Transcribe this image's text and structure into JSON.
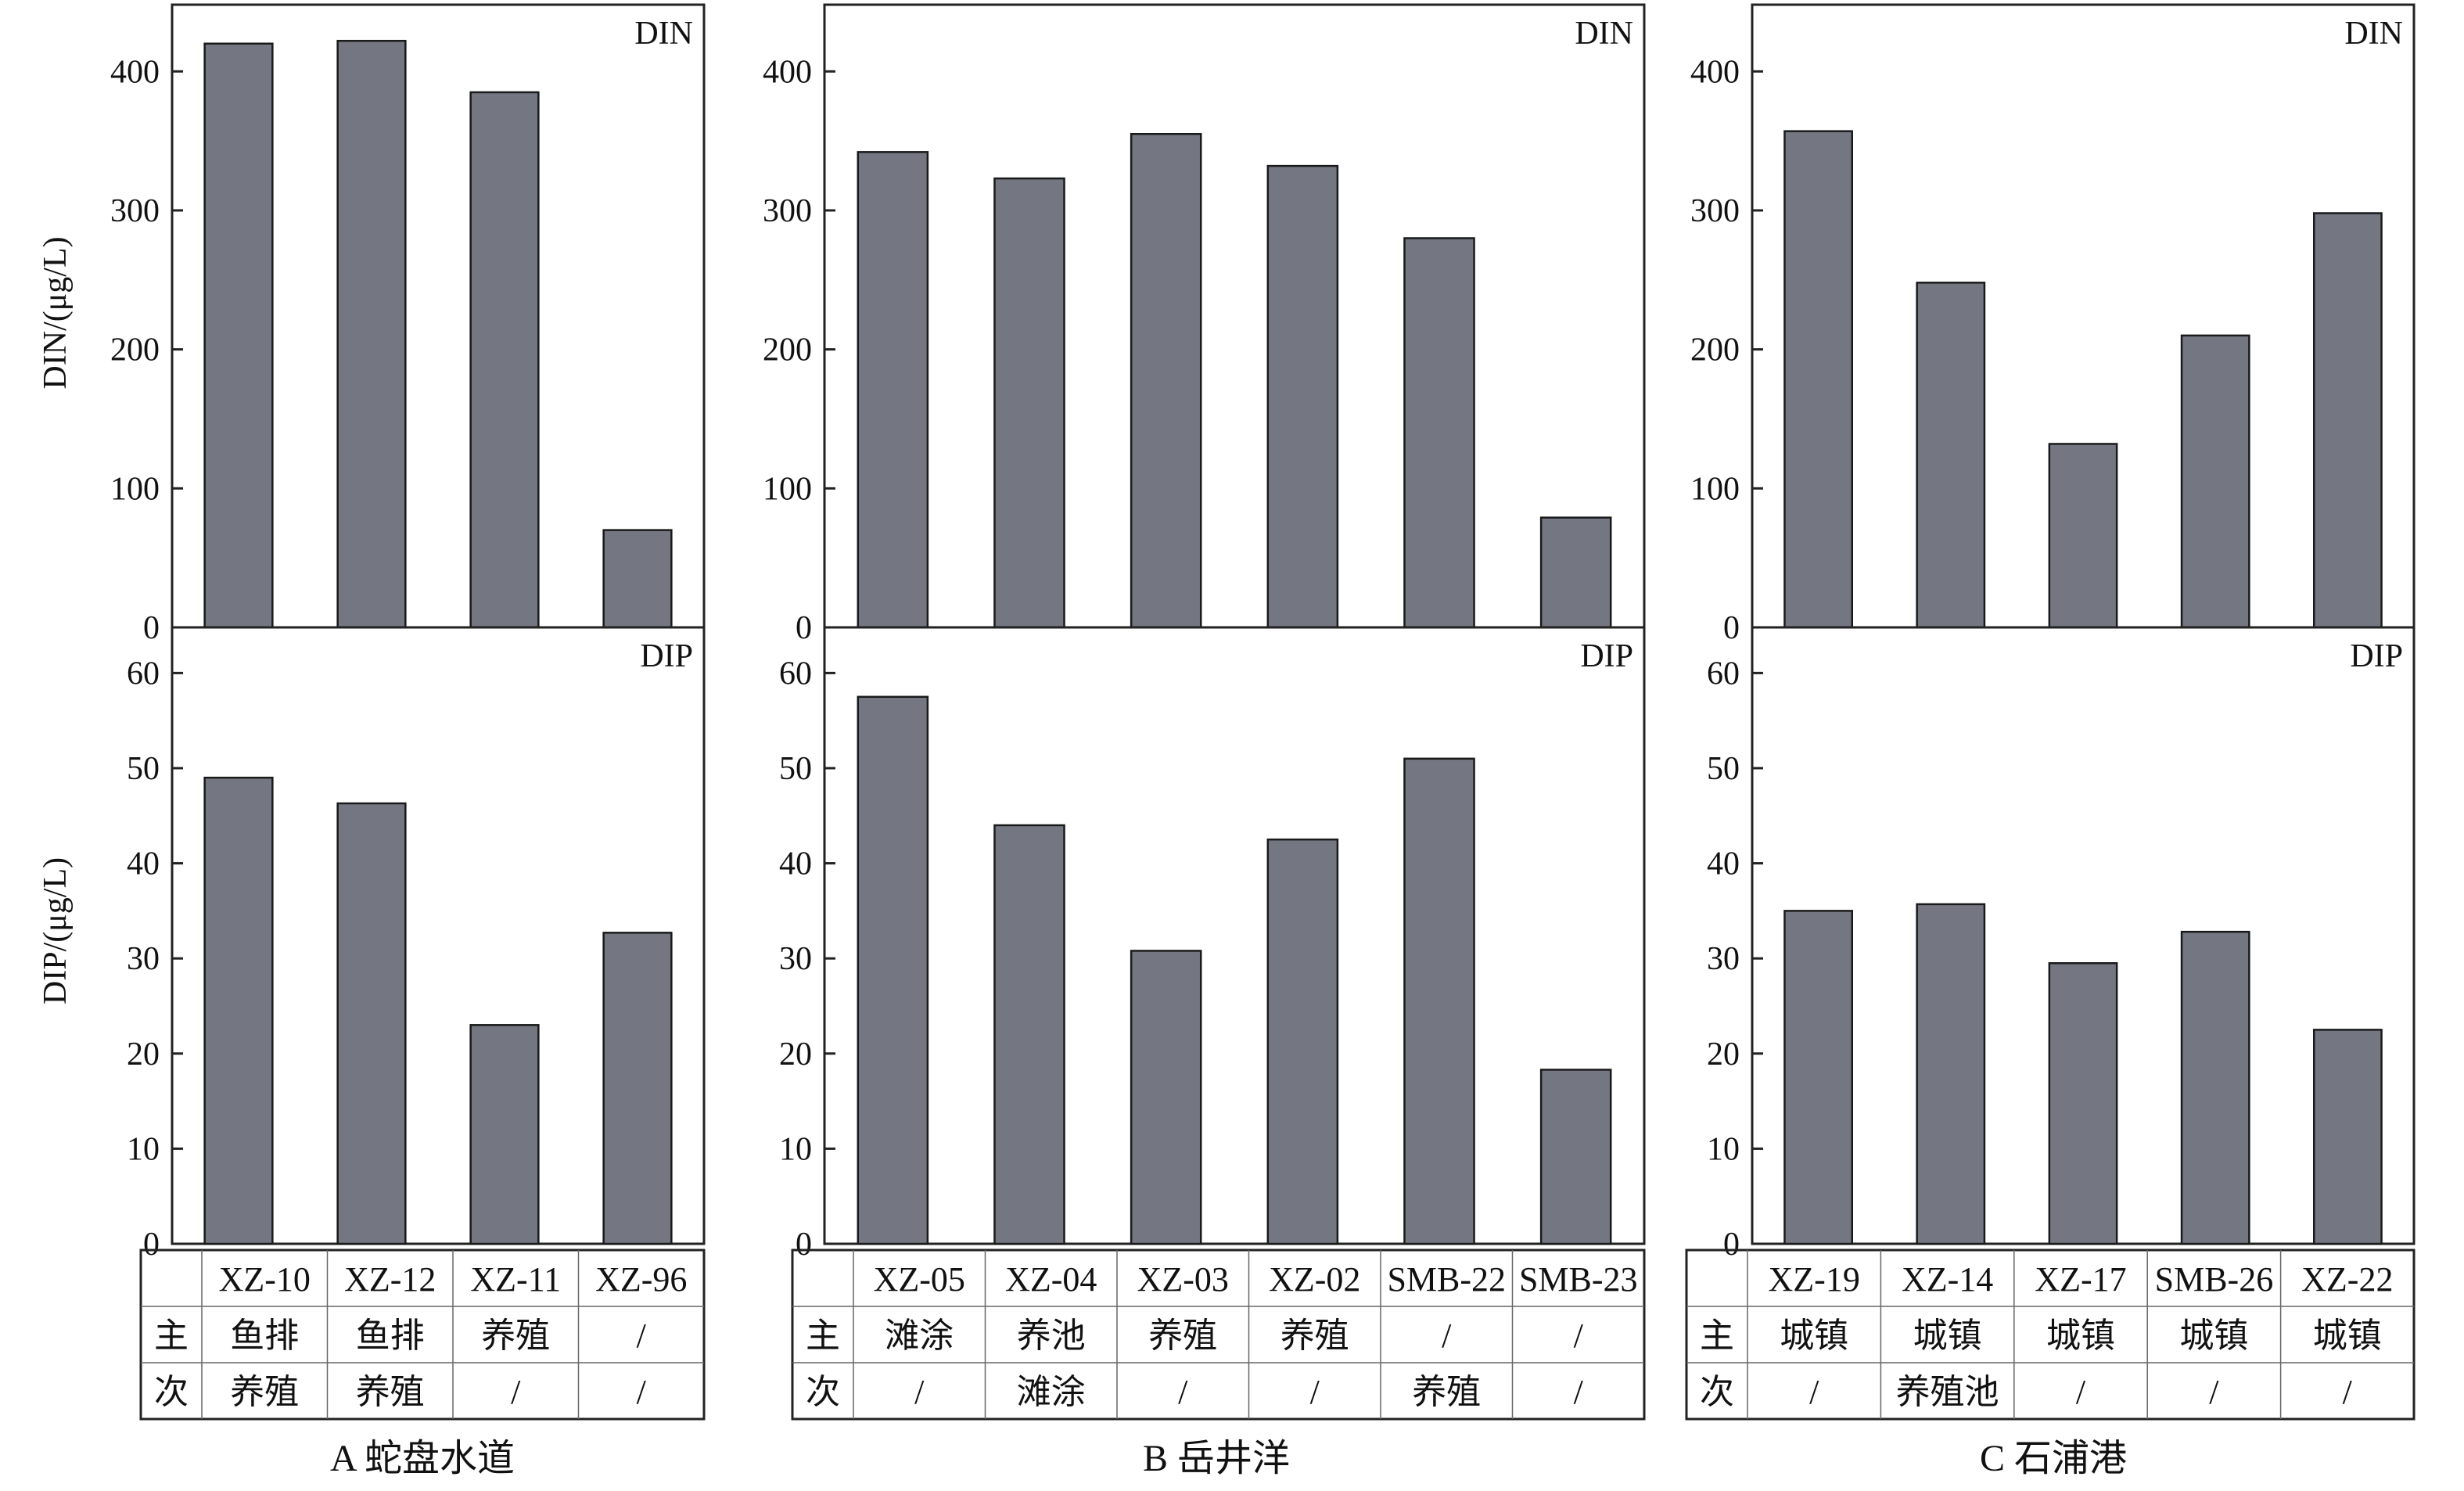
{
  "y_axis_labels": {
    "din": "DIN/(μg/L)",
    "dip": "DIP/(μg/L)"
  },
  "table_row_headers": [
    "主",
    "次"
  ],
  "colors": {
    "bar": "#747781",
    "axis": "#222222"
  },
  "chart_data": [
    {
      "type": "bar",
      "caption": "A 蛇盘水道",
      "categories": [
        "XZ-10",
        "XZ-12",
        "XZ-11",
        "XZ-96"
      ],
      "primary": [
        "鱼排",
        "鱼排",
        "养殖",
        "/"
      ],
      "secondary": [
        "养殖",
        "养殖",
        "/",
        "/"
      ],
      "din": {
        "title": "DIN",
        "ylabel": "DIN/(μg/L)",
        "values": [
          420,
          422,
          385,
          70
        ],
        "ylim": [
          0,
          448
        ],
        "ticks": [
          0,
          100,
          200,
          300,
          400
        ]
      },
      "dip": {
        "title": "DIP",
        "ylabel": "DIP/(μg/L)",
        "values": [
          49,
          46.3,
          23,
          32.7
        ],
        "ylim": [
          0,
          64.8
        ],
        "ticks": [
          0,
          10,
          20,
          30,
          40,
          50,
          60
        ]
      }
    },
    {
      "type": "bar",
      "caption": "B 岳井洋",
      "categories": [
        "XZ-05",
        "XZ-04",
        "XZ-03",
        "XZ-02",
        "SMB-22",
        "SMB-23"
      ],
      "primary": [
        "滩涂",
        "养池",
        "养殖",
        "养殖",
        "/",
        "/"
      ],
      "secondary": [
        "/",
        "滩涂",
        "/",
        "/",
        "养殖",
        "/"
      ],
      "din": {
        "title": "DIN",
        "ylabel": "",
        "values": [
          342,
          323,
          355,
          332,
          280,
          79
        ],
        "ylim": [
          0,
          448
        ],
        "ticks": [
          0,
          100,
          200,
          300,
          400
        ]
      },
      "dip": {
        "title": "DIP",
        "ylabel": "",
        "values": [
          57.5,
          44,
          30.8,
          42.5,
          51,
          18.3
        ],
        "ylim": [
          0,
          64.8
        ],
        "ticks": [
          0,
          10,
          20,
          30,
          40,
          50,
          60
        ]
      }
    },
    {
      "type": "bar",
      "caption": "C 石浦港",
      "categories": [
        "XZ-19",
        "XZ-14",
        "XZ-17",
        "SMB-26",
        "XZ-22"
      ],
      "primary": [
        "城镇",
        "城镇",
        "城镇",
        "城镇",
        "城镇"
      ],
      "secondary": [
        "/",
        "养殖池",
        "/",
        "/",
        "/"
      ],
      "din": {
        "title": "DIN",
        "ylabel": "",
        "values": [
          357,
          248,
          132,
          210,
          298
        ],
        "ylim": [
          0,
          448
        ],
        "ticks": [
          0,
          100,
          200,
          300,
          400
        ]
      },
      "dip": {
        "title": "DIP",
        "ylabel": "",
        "values": [
          35,
          35.7,
          29.5,
          32.8,
          22.5
        ],
        "ylim": [
          0,
          64.8
        ],
        "ticks": [
          0,
          10,
          20,
          30,
          40,
          50,
          60
        ]
      }
    }
  ]
}
